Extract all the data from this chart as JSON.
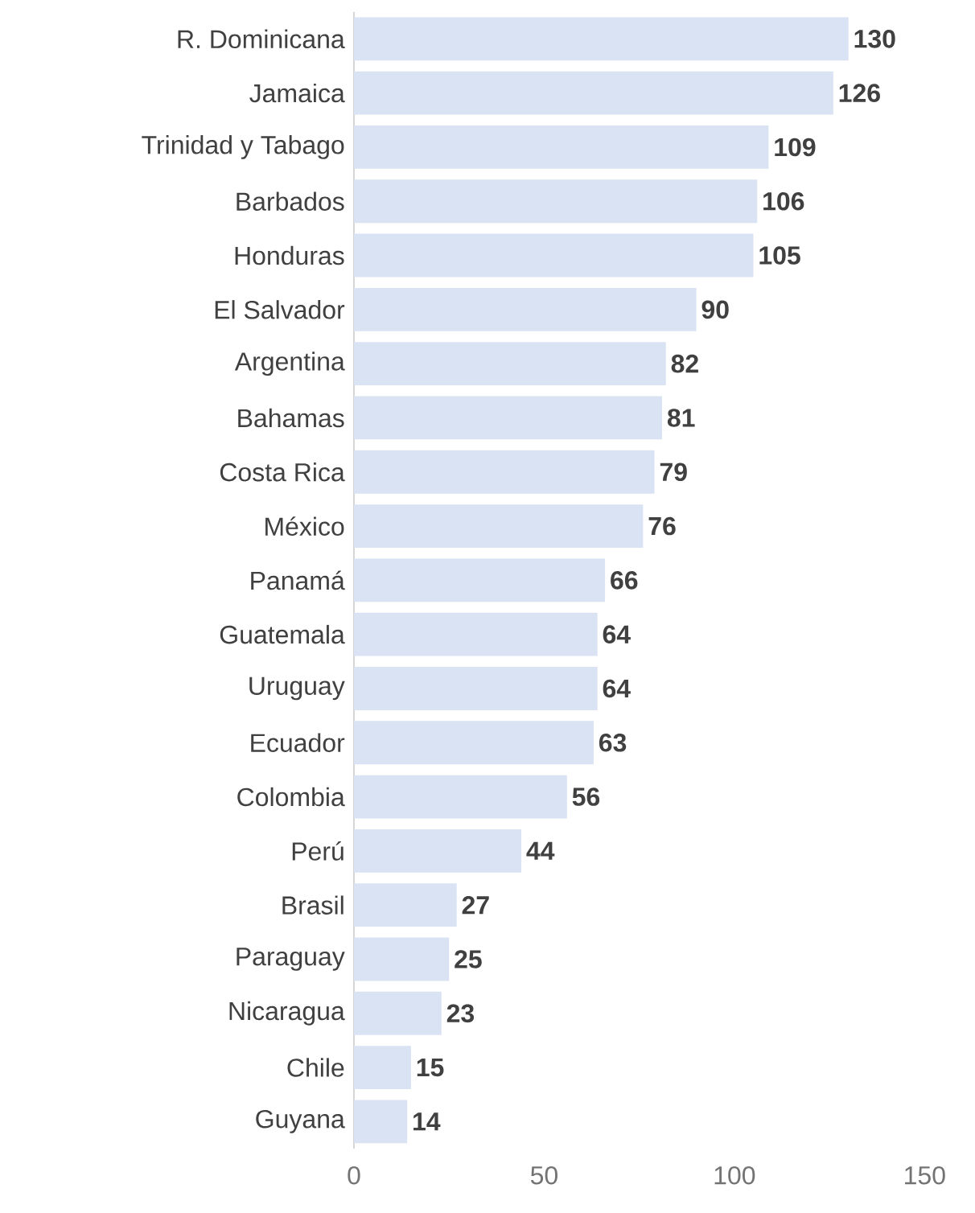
{
  "chart_data": {
    "type": "bar",
    "orientation": "horizontal",
    "categories": [
      "R. Dominicana",
      "Jamaica",
      "Trinidad y Tabago",
      "Barbados",
      "Honduras",
      "El Salvador",
      "Argentina",
      "Bahamas",
      "Costa Rica",
      "México",
      "Panamá",
      "Guatemala",
      "Uruguay",
      "Ecuador",
      "Colombia",
      "Perú",
      "Brasil",
      "Paraguay",
      "Nicaragua",
      "Chile",
      "Guyana"
    ],
    "values": [
      130,
      126,
      109,
      106,
      105,
      90,
      82,
      81,
      79,
      76,
      66,
      64,
      64,
      63,
      56,
      44,
      27,
      25,
      23,
      15,
      14
    ],
    "color": "#dae3f3",
    "data_labels": true,
    "xlim": [
      0,
      150
    ],
    "xticks": [
      0,
      50,
      100,
      150
    ]
  }
}
